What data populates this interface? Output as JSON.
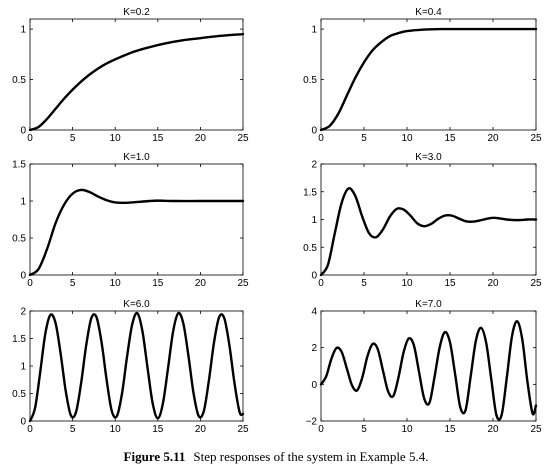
{
  "caption": {
    "label": "Figure 5.11",
    "text": "Step responses of the system in Example 5.4."
  },
  "chart_data": [
    {
      "type": "line",
      "title": "K=0.2",
      "xlim": [
        0,
        25
      ],
      "ylim": [
        0,
        1.1
      ],
      "xticks": [
        0,
        5,
        10,
        15,
        20,
        25
      ],
      "yticks": [
        0,
        0.5,
        1
      ],
      "ytick_labels": [
        "0",
        "0.5",
        "1"
      ],
      "series": [
        {
          "x": [
            0,
            1,
            2,
            3,
            4,
            5,
            6,
            7,
            8,
            9,
            10,
            12,
            14,
            16,
            18,
            20,
            22,
            25
          ],
          "y": [
            0,
            0.03,
            0.11,
            0.21,
            0.31,
            0.4,
            0.48,
            0.55,
            0.61,
            0.66,
            0.7,
            0.77,
            0.82,
            0.86,
            0.89,
            0.91,
            0.93,
            0.95
          ]
        }
      ]
    },
    {
      "type": "line",
      "title": "K=0.4",
      "xlim": [
        0,
        25
      ],
      "ylim": [
        0,
        1.1
      ],
      "xticks": [
        0,
        5,
        10,
        15,
        20,
        25
      ],
      "yticks": [
        0,
        0.5,
        1
      ],
      "ytick_labels": [
        "0",
        "0.5",
        "1"
      ],
      "series": [
        {
          "x": [
            0,
            1,
            2,
            3,
            4,
            5,
            6,
            7,
            8,
            9,
            10,
            12,
            14,
            16,
            18,
            20,
            22,
            25
          ],
          "y": [
            0,
            0.04,
            0.16,
            0.34,
            0.52,
            0.67,
            0.79,
            0.87,
            0.93,
            0.96,
            0.98,
            0.995,
            1.0,
            1.0,
            1.0,
            1.0,
            1.0,
            1.0
          ]
        }
      ]
    },
    {
      "type": "line",
      "title": "K=1.0",
      "xlim": [
        0,
        25
      ],
      "ylim": [
        0,
        1.5
      ],
      "xticks": [
        0,
        5,
        10,
        15,
        20,
        25
      ],
      "yticks": [
        0,
        0.5,
        1,
        1.5
      ],
      "ytick_labels": [
        "0",
        "0.5",
        "1",
        "1.5"
      ],
      "series": [
        {
          "x": [
            0,
            1,
            2,
            3,
            4,
            5,
            6,
            7,
            8,
            9,
            10,
            11,
            12,
            13,
            14,
            15,
            17,
            20,
            22,
            25
          ],
          "y": [
            0,
            0.08,
            0.35,
            0.7,
            0.95,
            1.1,
            1.15,
            1.12,
            1.06,
            1.01,
            0.98,
            0.975,
            0.98,
            0.99,
            1.0,
            1.005,
            1.0,
            1.0,
            1.0,
            1.0
          ]
        }
      ]
    },
    {
      "type": "line",
      "title": "K=3.0",
      "xlim": [
        0,
        25
      ],
      "ylim": [
        0,
        2
      ],
      "xticks": [
        0,
        5,
        10,
        15,
        20,
        25
      ],
      "yticks": [
        0,
        0.5,
        1,
        1.5,
        2
      ],
      "ytick_labels": [
        "0",
        "0.5",
        "1",
        "1.5",
        "2"
      ],
      "series": [
        {
          "x": [
            0,
            0.8,
            1.6,
            2.4,
            3.2,
            4.0,
            4.8,
            5.6,
            6.4,
            7.2,
            8.0,
            8.8,
            9.6,
            10.4,
            11.2,
            12.0,
            12.8,
            13.6,
            14.4,
            15.2,
            16.0,
            16.8,
            17.6,
            18.4,
            19.2,
            20.0,
            20.8,
            21.6,
            22.4,
            23.2,
            24.0,
            24.8,
            25.0
          ],
          "y": [
            0,
            0.18,
            0.75,
            1.3,
            1.56,
            1.42,
            1.05,
            0.75,
            0.68,
            0.82,
            1.05,
            1.19,
            1.18,
            1.07,
            0.93,
            0.88,
            0.92,
            1.01,
            1.07,
            1.07,
            1.02,
            0.97,
            0.96,
            0.98,
            1.01,
            1.03,
            1.02,
            1.0,
            0.99,
            0.99,
            1.0,
            1.0,
            1.0
          ]
        }
      ]
    },
    {
      "type": "line",
      "title": "K=6.0",
      "xlim": [
        0,
        25
      ],
      "ylim": [
        0,
        2
      ],
      "xticks": [
        0,
        5,
        10,
        15,
        20,
        25
      ],
      "yticks": [
        0,
        0.5,
        1,
        1.5,
        2
      ],
      "ytick_labels": [
        "0",
        "0.5",
        "1",
        "1.5",
        "2"
      ],
      "series": [
        {
          "x": [
            0,
            0.6,
            1.2,
            1.8,
            2.4,
            3.0,
            3.6,
            4.2,
            4.8,
            5.4,
            6.0,
            6.6,
            7.2,
            7.8,
            8.4,
            9.0,
            9.6,
            10.2,
            10.8,
            11.4,
            12.0,
            12.6,
            13.2,
            13.8,
            14.4,
            15.0,
            15.6,
            16.2,
            16.8,
            17.4,
            18.0,
            18.6,
            19.2,
            19.8,
            20.4,
            21.0,
            21.6,
            22.2,
            22.8,
            23.4,
            24.0,
            24.6,
            25.0
          ],
          "y": [
            0,
            0.24,
            0.89,
            1.59,
            1.93,
            1.78,
            1.22,
            0.54,
            0.1,
            0.16,
            0.69,
            1.38,
            1.87,
            1.89,
            1.43,
            0.74,
            0.18,
            0.09,
            0.5,
            1.18,
            1.76,
            1.96,
            1.63,
            0.96,
            0.32,
            0.05,
            0.32,
            0.96,
            1.63,
            1.96,
            1.77,
            1.18,
            0.5,
            0.09,
            0.18,
            0.74,
            1.43,
            1.89,
            1.87,
            1.38,
            0.69,
            0.16,
            0.13
          ]
        }
      ]
    },
    {
      "type": "line",
      "title": "K=7.0",
      "xlim": [
        0,
        25
      ],
      "ylim": [
        -2,
        4
      ],
      "xticks": [
        0,
        5,
        10,
        15,
        20,
        25
      ],
      "yticks": [
        -2,
        0,
        2,
        4
      ],
      "ytick_labels": [
        "−2",
        "0",
        "2",
        "4"
      ],
      "series": [
        {
          "x": [
            0,
            0.6,
            1.2,
            1.8,
            2.4,
            3.0,
            3.6,
            4.2,
            4.8,
            5.4,
            6.0,
            6.6,
            7.2,
            7.8,
            8.4,
            9.0,
            9.6,
            10.2,
            10.8,
            11.4,
            12.0,
            12.6,
            13.2,
            13.8,
            14.4,
            15.0,
            15.6,
            16.2,
            16.8,
            17.4,
            18.0,
            18.6,
            19.2,
            19.8,
            20.4,
            21.0,
            21.6,
            22.2,
            22.8,
            23.4,
            24.0,
            24.6,
            25.0
          ],
          "y": [
            0,
            0.43,
            1.38,
            1.98,
            1.77,
            0.87,
            -0.05,
            -0.33,
            0.37,
            1.53,
            2.2,
            1.92,
            0.76,
            -0.38,
            -0.64,
            0.36,
            1.74,
            2.5,
            2.13,
            0.67,
            -0.77,
            -1.02,
            0.4,
            2.02,
            2.84,
            2.29,
            0.54,
            -1.26,
            -1.42,
            0.42,
            2.36,
            3.08,
            2.28,
            0.28,
            -1.68,
            -1.68,
            0.35,
            2.6,
            3.44,
            2.46,
            0.16,
            -1.59,
            -1.15
          ]
        }
      ]
    }
  ]
}
